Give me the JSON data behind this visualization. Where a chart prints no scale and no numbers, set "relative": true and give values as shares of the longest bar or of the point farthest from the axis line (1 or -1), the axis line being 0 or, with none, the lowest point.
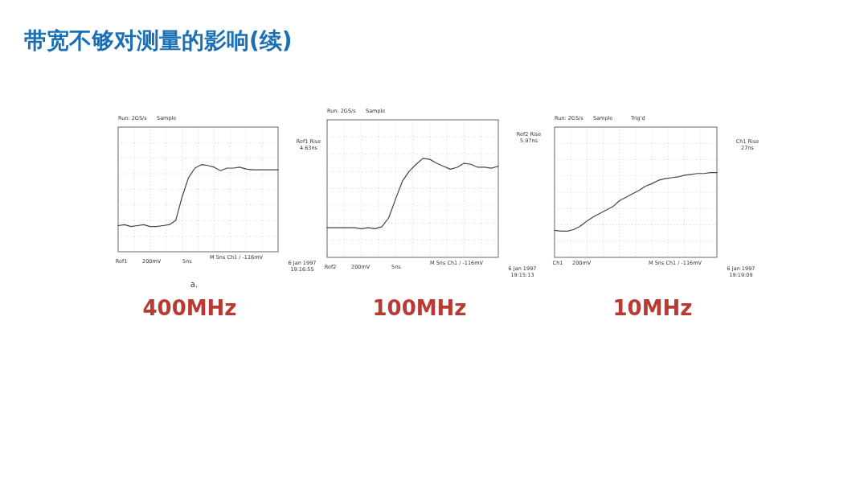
{
  "chart_data": [
    {
      "type": "line",
      "title": "带宽不够对测量的影响(续)",
      "xlabel": "400MHz",
      "relative": true,
      "grid": true,
      "marker": "none",
      "line_style": "solid",
      "categories": [
        null,
        null,
        null,
        null,
        null,
        null,
        null,
        null,
        null,
        null,
        null,
        null,
        null,
        null,
        null,
        null,
        null,
        null,
        null,
        null,
        null,
        null,
        null,
        null,
        null,
        null
      ],
      "series": [
        {
          "color": "#444444",
          "values": [
            0.3,
            0.31,
            0.29,
            0.3,
            0.31,
            0.29,
            0.29,
            0.3,
            0.31,
            0.36,
            0.63,
            0.85,
            0.96,
            1,
            0.99,
            0.97,
            0.93,
            0.96,
            0.96,
            0.97,
            0.95,
            0.94,
            0.94,
            0.94,
            0.94,
            0.94
          ]
        }
      ],
      "annotations": [
        "Run: 2GS/s",
        "Sample",
        "Ref1 Rise",
        "4.63ns",
        "Ref1",
        "200mV",
        "5ns",
        "M   5ns  Ch1  / -116mV",
        "6 Jan 1997",
        "19:16:55",
        "a."
      ]
    },
    {
      "type": "line",
      "xlabel": "100MHz",
      "relative": true,
      "grid": true,
      "marker": "none",
      "line_style": "solid",
      "categories": [
        null,
        null,
        null,
        null,
        null,
        null,
        null,
        null,
        null,
        null,
        null,
        null,
        null,
        null,
        null,
        null,
        null,
        null,
        null,
        null,
        null,
        null,
        null,
        null,
        null,
        null
      ],
      "series": [
        {
          "color": "#444444",
          "values": [
            0.3,
            0.3,
            0.3,
            0.3,
            0.3,
            0.29,
            0.3,
            0.29,
            0.31,
            0.4,
            0.59,
            0.77,
            0.87,
            0.94,
            1,
            0.99,
            0.95,
            0.92,
            0.89,
            0.91,
            0.95,
            0.94,
            0.91,
            0.91,
            0.9,
            0.92
          ]
        }
      ],
      "annotations": [
        "Run: 2GS/s",
        "Sample",
        "Ref2 Rise",
        "5.97ns",
        "Ref2",
        "200mV",
        "5ns",
        "M   5ns  Ch1  / -116mV",
        "6 Jan 1997",
        "19:15:13"
      ]
    },
    {
      "type": "line",
      "xlabel": "10MHz",
      "relative": true,
      "grid": true,
      "marker": "none",
      "line_style": "solid",
      "categories": [
        null,
        null,
        null,
        null,
        null,
        null,
        null,
        null,
        null,
        null,
        null,
        null,
        null,
        null,
        null,
        null,
        null,
        null,
        null,
        null,
        null,
        null,
        null,
        null,
        null,
        null
      ],
      "series": [
        {
          "color": "#444444",
          "values": [
            0.32,
            0.31,
            0.31,
            0.33,
            0.37,
            0.43,
            0.48,
            0.52,
            0.56,
            0.6,
            0.67,
            0.71,
            0.75,
            0.79,
            0.84,
            0.87,
            0.91,
            0.93,
            0.94,
            0.95,
            0.97,
            0.98,
            0.99,
            0.99,
            1,
            1
          ]
        }
      ],
      "annotations": [
        "Run: 2GS/s",
        "Sample",
        "Ch1 Rise",
        "27ns",
        "Ch1",
        "200mV",
        "M   5ns  Ch1  / -116mV",
        "6 Jan 1997",
        "19:19:09",
        "Trig'd"
      ]
    }
  ]
}
